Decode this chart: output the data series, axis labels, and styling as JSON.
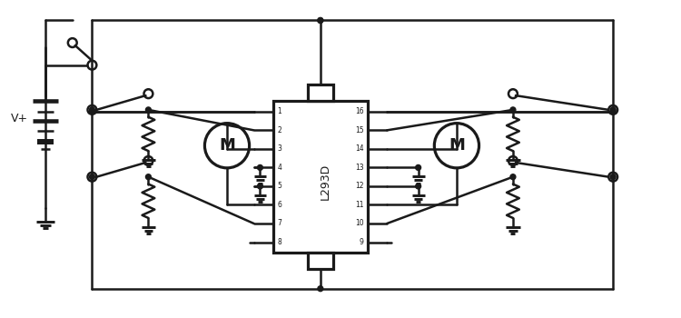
{
  "bg_color": "#ffffff",
  "line_color": "#1a1a1a",
  "line_width": 1.8,
  "ic_label": "L293D",
  "motor_label": "M",
  "battery_label": "V+"
}
